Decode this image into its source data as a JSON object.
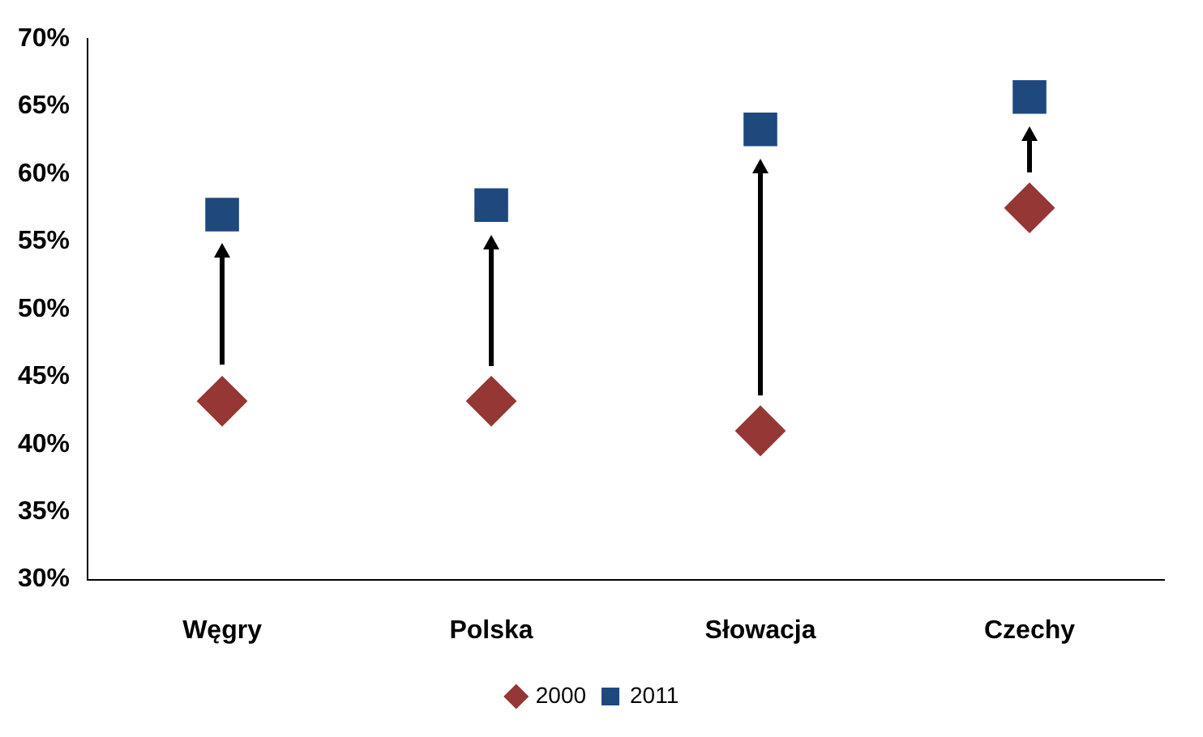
{
  "chart_data": {
    "type": "scatter",
    "categories": [
      "Węgry",
      "Polska",
      "Słowacja",
      "Czechy"
    ],
    "series": [
      {
        "name": "2000",
        "color": "#953735",
        "values": [
          43.2,
          43.2,
          41,
          57.5
        ],
        "marker": "diamond"
      },
      {
        "name": "2011",
        "color": "#1f497d",
        "values": [
          57,
          57.7,
          63.3,
          65.7
        ],
        "marker": "square"
      }
    ],
    "ylim": [
      30,
      70
    ],
    "yticks": [
      {
        "value": 30,
        "label": "30%"
      },
      {
        "value": 35,
        "label": "35%"
      },
      {
        "value": 40,
        "label": "40%"
      },
      {
        "value": 45,
        "label": "45%"
      },
      {
        "value": 50,
        "label": "50%"
      },
      {
        "value": 55,
        "label": "55%"
      },
      {
        "value": 60,
        "label": "60%"
      },
      {
        "value": 65,
        "label": "65%"
      },
      {
        "value": 70,
        "label": "70%"
      }
    ],
    "grid": false,
    "legend": "bottom"
  }
}
